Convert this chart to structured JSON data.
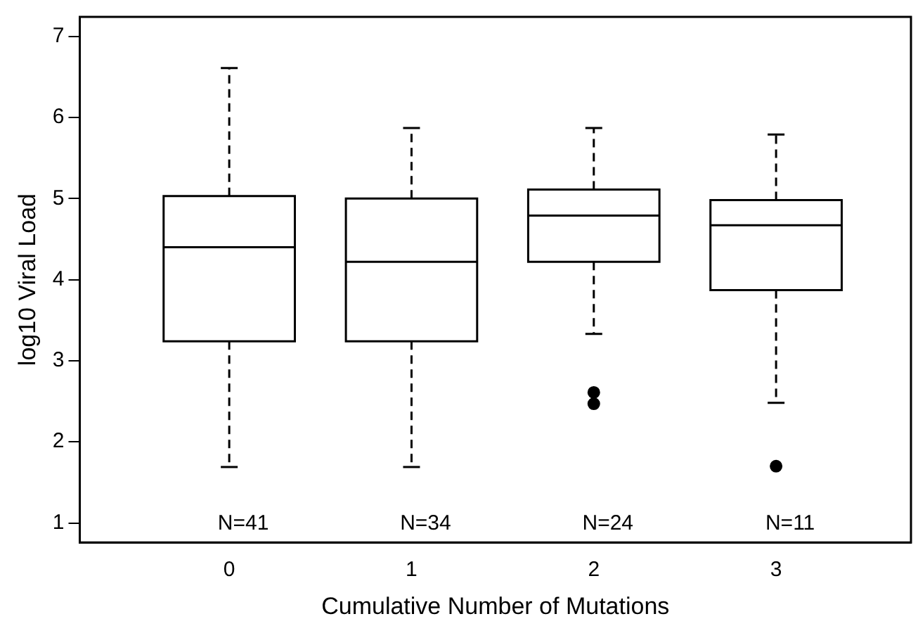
{
  "chart_data": {
    "type": "box",
    "xlabel": "Cumulative Number of Mutations",
    "ylabel": "log10 Viral Load",
    "categories": [
      "0",
      "1",
      "2",
      "3"
    ],
    "boxes": [
      {
        "low": 1.69,
        "q1": 3.24,
        "median": 4.4,
        "q3": 5.03,
        "high": 6.61
      },
      {
        "low": 1.69,
        "q1": 3.24,
        "median": 4.22,
        "q3": 5.0,
        "high": 5.87
      },
      {
        "low": 3.33,
        "q1": 4.22,
        "median": 4.79,
        "q3": 5.11,
        "high": 5.87,
        "outliers": [
          2.61,
          2.47
        ]
      },
      {
        "low": 2.48,
        "q1": 3.87,
        "median": 4.67,
        "q3": 4.98,
        "high": 5.79,
        "outliers": [
          1.7
        ]
      }
    ],
    "color": "#000000",
    "ylim": [
      0.76,
      7.24
    ],
    "yticks": [
      1,
      2,
      3,
      4,
      5,
      6,
      7
    ],
    "annotations": [
      "N=41",
      "N=34",
      "N=24",
      "N=11"
    ],
    "grid": false,
    "legend": false,
    "line_style": "dashed",
    "marker": "circle"
  }
}
